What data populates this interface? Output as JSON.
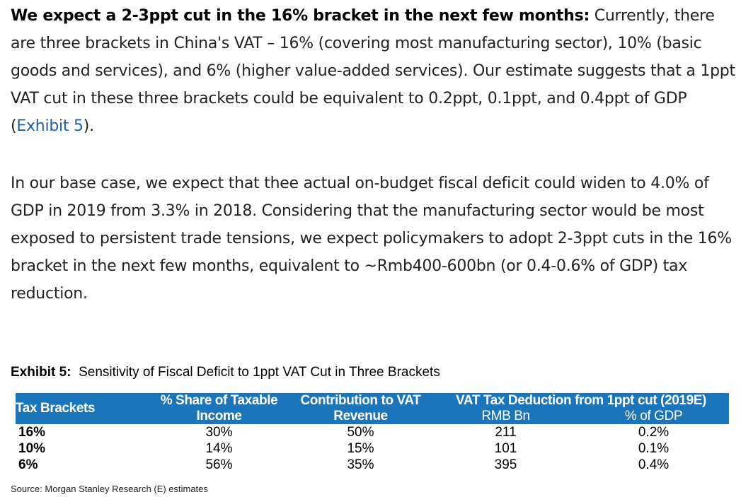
{
  "paragraph1": {
    "lead": "We expect a 2-3ppt cut in the 16% bracket in the next few months:",
    "text": " Currently, there are three brackets in China's VAT – 16% (covering most manufacturing sector), 10% (basic goods and services), and 6% (higher value-added services). Our estimate suggests that a 1ppt VAT cut in these three brackets could be equivalent to 0.2ppt, 0.1ppt, and 0.4ppt of GDP (",
    "link": "Exhibit 5",
    "end": ")."
  },
  "paragraph2": {
    "text": "In our base case, we expect that thee actual on-budget fiscal deficit could widen to 4.0% of GDP in 2019 from 3.3% in 2018. Considering that the manufacturing sector would be most exposed to persistent trade tensions, we expect policymakers to adopt 2-3ppt cuts in the 16% bracket in the next few months, equivalent to ~Rmb400-600bn (or 0.4-0.6% of GDP) tax reduction."
  },
  "exhibit": {
    "label": "Exhibit 5:",
    "title": "Sensitivity of Fiscal Deficit to 1ppt VAT Cut in Three Brackets",
    "header": {
      "col1": "Tax Brackets",
      "col2": "% Share of Taxable Income",
      "col3": "Contribution to VAT Revenue",
      "col4": "VAT Tax Deduction from 1ppt cut (2019E)",
      "col4_sub1": "RMB Bn",
      "col4_sub2": "% of GDP"
    },
    "rows": [
      {
        "bracket": "16%",
        "share": "30%",
        "contribution": "50%",
        "rmb": "211",
        "gdp": "0.2%"
      },
      {
        "bracket": "10%",
        "share": "14%",
        "contribution": "15%",
        "rmb": "101",
        "gdp": "0.1%"
      },
      {
        "bracket": "6%",
        "share": "56%",
        "contribution": "35%",
        "rmb": "395",
        "gdp": "0.4%"
      }
    ],
    "source": "Source: Morgan Stanley Research (E) estimates"
  },
  "colors": {
    "header_bg": "#1a75bb",
    "link": "#1f5fa8"
  }
}
